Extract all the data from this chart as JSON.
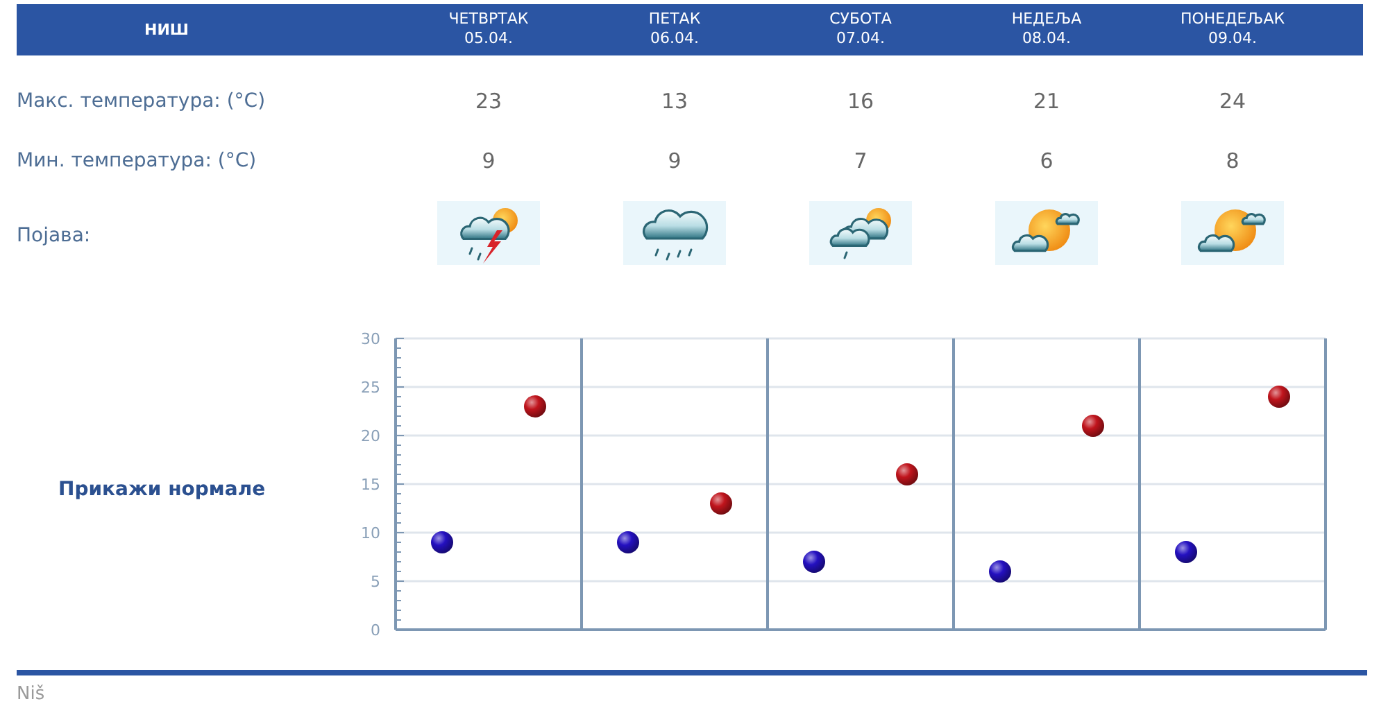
{
  "chart_data": {
    "type": "scatter",
    "title": "НИШ",
    "categories": [
      null,
      null,
      null,
      null,
      null
    ],
    "tick_labels": "y",
    "series": [
      {
        "color": "#c0141c",
        "values": [
          23,
          13,
          16,
          21,
          24
        ]
      },
      {
        "color": "#2410c0",
        "values": [
          9,
          9,
          7,
          6,
          8
        ]
      }
    ],
    "ylim": [
      0,
      30
    ],
    "yticks": [
      0,
      {
        "value": 1,
        "label": null
      },
      {
        "value": 2,
        "label": null
      },
      {
        "value": 3,
        "label": null
      },
      {
        "value": 4,
        "label": null
      },
      5,
      {
        "value": 6,
        "label": null
      },
      {
        "value": 7,
        "label": null
      },
      {
        "value": 8,
        "label": null
      },
      {
        "value": 9,
        "label": null
      },
      10,
      {
        "value": 11,
        "label": null
      },
      {
        "value": 12,
        "label": null
      },
      {
        "value": 13,
        "label": null
      },
      {
        "value": 14,
        "label": null
      },
      15,
      {
        "value": 16,
        "label": null
      },
      {
        "value": 17,
        "label": null
      },
      {
        "value": 18,
        "label": null
      },
      {
        "value": 19,
        "label": null
      },
      20,
      {
        "value": 21,
        "label": null
      },
      {
        "value": 22,
        "label": null
      },
      {
        "value": 23,
        "label": null
      },
      {
        "value": 24,
        "label": null
      },
      25,
      {
        "value": 26,
        "label": null
      },
      {
        "value": 27,
        "label": null
      },
      {
        "value": 28,
        "label": null
      },
      {
        "value": 29,
        "label": null
      },
      30
    ],
    "grid": "y",
    "legend": false,
    "marker": "circle",
    "data_labels": true,
    "annotations": [
      "ЧЕТВРТАК 05.04.",
      "ПЕТАК 06.04.",
      "СУБОТА 07.04.",
      "НЕДЕЉА 08.04.",
      "ПОНЕДЕЉАК 09.04.",
      "Макс. температура: (°C)",
      "Мин. температура: (°C)",
      "Појава:",
      "Прикажи нормале",
      "Niš"
    ]
  }
}
